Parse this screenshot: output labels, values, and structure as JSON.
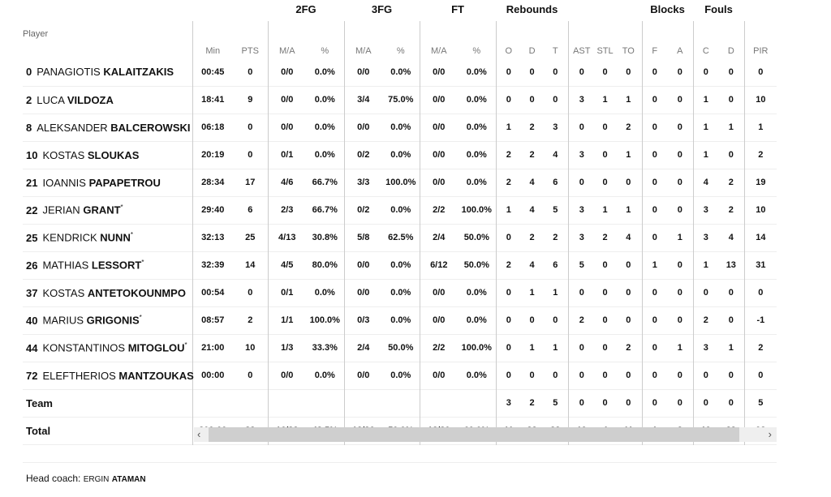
{
  "groups": {
    "fg2": "2FG",
    "fg3": "3FG",
    "ft": "FT",
    "reb": "Rebounds",
    "blk": "Blocks",
    "fouls": "Fouls"
  },
  "columns": [
    "Player",
    "Min",
    "PTS",
    "M/A",
    "%",
    "M/A",
    "%",
    "M/A",
    "%",
    "O",
    "D",
    "T",
    "AST",
    "STL",
    "TO",
    "F",
    "A",
    "C",
    "D",
    "PIR"
  ],
  "players": [
    {
      "no": "0",
      "first": "PANAGIOTIS",
      "last": "KALAITZAKIS",
      "starter": false,
      "stats": [
        "00:45",
        "0",
        "0/0",
        "0.0%",
        "0/0",
        "0.0%",
        "0/0",
        "0.0%",
        "0",
        "0",
        "0",
        "0",
        "0",
        "0",
        "0",
        "0",
        "0",
        "0",
        "0"
      ]
    },
    {
      "no": "2",
      "first": "LUCA",
      "last": "VILDOZA",
      "starter": false,
      "stats": [
        "18:41",
        "9",
        "0/0",
        "0.0%",
        "3/4",
        "75.0%",
        "0/0",
        "0.0%",
        "0",
        "0",
        "0",
        "3",
        "1",
        "1",
        "0",
        "0",
        "1",
        "0",
        "10"
      ]
    },
    {
      "no": "8",
      "first": "ALEKSANDER",
      "last": "BALCEROWSKI",
      "starter": false,
      "stats": [
        "06:18",
        "0",
        "0/0",
        "0.0%",
        "0/0",
        "0.0%",
        "0/0",
        "0.0%",
        "1",
        "2",
        "3",
        "0",
        "0",
        "2",
        "0",
        "0",
        "1",
        "1",
        "1"
      ]
    },
    {
      "no": "10",
      "first": "KOSTAS",
      "last": "SLOUKAS",
      "starter": false,
      "stats": [
        "20:19",
        "0",
        "0/1",
        "0.0%",
        "0/2",
        "0.0%",
        "0/0",
        "0.0%",
        "2",
        "2",
        "4",
        "3",
        "0",
        "1",
        "0",
        "0",
        "1",
        "0",
        "2"
      ]
    },
    {
      "no": "21",
      "first": "IOANNIS",
      "last": "PAPAPETROU",
      "starter": false,
      "stats": [
        "28:34",
        "17",
        "4/6",
        "66.7%",
        "3/3",
        "100.0%",
        "0/0",
        "0.0%",
        "2",
        "4",
        "6",
        "0",
        "0",
        "0",
        "0",
        "0",
        "4",
        "2",
        "19"
      ]
    },
    {
      "no": "22",
      "first": "JERIAN",
      "last": "GRANT",
      "starter": true,
      "stats": [
        "29:40",
        "6",
        "2/3",
        "66.7%",
        "0/2",
        "0.0%",
        "2/2",
        "100.0%",
        "1",
        "4",
        "5",
        "3",
        "1",
        "1",
        "0",
        "0",
        "3",
        "2",
        "10"
      ]
    },
    {
      "no": "25",
      "first": "KENDRICK",
      "last": "NUNN",
      "starter": true,
      "stats": [
        "32:13",
        "25",
        "4/13",
        "30.8%",
        "5/8",
        "62.5%",
        "2/4",
        "50.0%",
        "0",
        "2",
        "2",
        "3",
        "2",
        "4",
        "0",
        "1",
        "3",
        "4",
        "14"
      ]
    },
    {
      "no": "26",
      "first": "MATHIAS",
      "last": "LESSORT",
      "starter": true,
      "stats": [
        "32:39",
        "14",
        "4/5",
        "80.0%",
        "0/0",
        "0.0%",
        "6/12",
        "50.0%",
        "2",
        "4",
        "6",
        "5",
        "0",
        "0",
        "1",
        "0",
        "1",
        "13",
        "31"
      ]
    },
    {
      "no": "37",
      "first": "KOSTAS",
      "last": "ANTETOKOUNMPO",
      "starter": false,
      "stats": [
        "00:54",
        "0",
        "0/1",
        "0.0%",
        "0/0",
        "0.0%",
        "0/0",
        "0.0%",
        "0",
        "1",
        "1",
        "0",
        "0",
        "0",
        "0",
        "0",
        "0",
        "0",
        "0"
      ]
    },
    {
      "no": "40",
      "first": "MARIUS",
      "last": "GRIGONIS",
      "starter": true,
      "stats": [
        "08:57",
        "2",
        "1/1",
        "100.0%",
        "0/3",
        "0.0%",
        "0/0",
        "0.0%",
        "0",
        "0",
        "0",
        "2",
        "0",
        "0",
        "0",
        "0",
        "2",
        "0",
        "-1"
      ]
    },
    {
      "no": "44",
      "first": "KONSTANTINOS",
      "last": "MITOGLOU",
      "starter": true,
      "stats": [
        "21:00",
        "10",
        "1/3",
        "33.3%",
        "2/4",
        "50.0%",
        "2/2",
        "100.0%",
        "0",
        "1",
        "1",
        "0",
        "0",
        "2",
        "0",
        "1",
        "3",
        "1",
        "2"
      ]
    },
    {
      "no": "72",
      "first": "ELEFTHERIOS",
      "last": "MANTZOUKAS",
      "starter": false,
      "stats": [
        "00:00",
        "0",
        "0/0",
        "0.0%",
        "0/0",
        "0.0%",
        "0/0",
        "0.0%",
        "0",
        "0",
        "0",
        "0",
        "0",
        "0",
        "0",
        "0",
        "0",
        "0",
        "0"
      ]
    }
  ],
  "team": {
    "label": "Team",
    "stats": [
      "",
      "",
      "",
      "",
      "",
      "",
      "",
      "",
      "3",
      "2",
      "5",
      "0",
      "0",
      "0",
      "0",
      "0",
      "0",
      "0",
      "5"
    ]
  },
  "total": {
    "label": "Total",
    "stats": [
      "200:00",
      "83",
      "16/33",
      "48.5%",
      "13/26",
      "50.0%",
      "12/20",
      "60.0%",
      "11",
      "22",
      "33",
      "19",
      "4",
      "11",
      "1",
      "2",
      "19",
      "23",
      "93"
    ]
  },
  "starter_mark": "*",
  "scroll": {
    "left": "‹",
    "right": "›"
  },
  "coach": {
    "label": "Head coach:",
    "first": "ERGIN",
    "last": "ATAMAN"
  }
}
